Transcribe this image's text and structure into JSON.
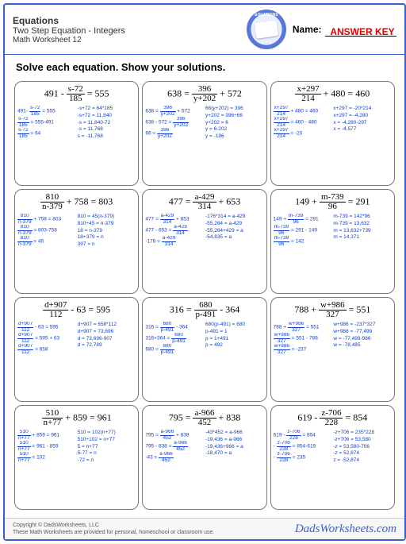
{
  "header": {
    "title": "Equations",
    "subtitle": "Two Step Equation - Integers",
    "ws": "Math Worksheet 12",
    "nameLabel": "Name:",
    "answerKey": "ANSWER KEY"
  },
  "instruction": "Solve each equation.  Show your solutions.",
  "cells": [
    {
      "eq": {
        "pre": "491 - ",
        "num": "s-72",
        "den": "185",
        "post": " = 555"
      },
      "c1": [
        "491- [s-72/185] = 555",
        "[s-72/185] = 555-491",
        "[s-72/185] = 64"
      ],
      "c2": [
        "-s+72 = 64*185",
        "-s+72 = 11,840",
        "-s = 11,840-72",
        "-s = 11,768",
        "s = -11,768"
      ]
    },
    {
      "eq": {
        "pre": "638 = ",
        "num": "396",
        "den": "y+202",
        "post": " + 572"
      },
      "c1": [
        "638 = [396/y+202] + 572",
        "638 - 572 = [396/y+202]",
        "66 = [396/y+202]"
      ],
      "c2": [
        "66(y+202) = 396",
        "y+202 = 396÷66",
        "y+202 = 6",
        "y = 6-202",
        "y = -196"
      ]
    },
    {
      "eq": {
        "pre": "",
        "num": "x+297",
        "den": "214",
        "post": " + 480 = 460"
      },
      "c1": [
        "[x+297/214] + 480 = 460",
        "[x+297/214] = 460 - 480",
        "[x+297/214] = -20"
      ],
      "c2": [
        "x+297 = -20*214",
        "x+297 = -4,280",
        "x = -4,280-297",
        "x = -4,577"
      ]
    },
    {
      "eq": {
        "pre": "",
        "num": "810",
        "den": "n-379",
        "post": " + 758 = 803"
      },
      "c1": [
        "[810/n-379] + 758 = 803",
        "[810/n-379] = 803-758",
        "[810/n-379] = 45"
      ],
      "c2": [
        "810 = 45(n-379)",
        "810÷45 = n-379",
        "18 = n-379",
        "18+379 = n",
        "397 = n"
      ]
    },
    {
      "eq": {
        "pre": "477 = ",
        "num": "a-429",
        "den": "314",
        "post": " + 653"
      },
      "c1": [
        "477 = [a-429/314] + 653",
        "477 - 653 = [a-429/314]",
        "-176 = [a-429/314]"
      ],
      "c2": [
        "-176*314 = a-429",
        "-55,264 = a-429",
        "-55,264+429 = a",
        "-54,835 = a"
      ]
    },
    {
      "eq": {
        "pre": "149 + ",
        "num": "m-739",
        "den": "96",
        "post": " = 291"
      },
      "c1": [
        "149 + [m-739/96] = 291",
        "[m-739/96] = 291 - 149",
        "[m-739/96] = 142"
      ],
      "c2": [
        "m-739 = 142*96",
        "m-739 = 13,632",
        "m = 13,632+739",
        "m = 14,371"
      ]
    },
    {
      "eq": {
        "pre": "",
        "num": "d+907",
        "den": "112",
        "post": " - 63 = 595"
      },
      "c1": [
        "[d+907/112] - 63 = 595",
        "[d+907/112] = 595 + 63",
        "[d+907/112] = 658"
      ],
      "c2": [
        "d+907 = 658*112",
        "d+907 = 73,696",
        "d = 73,696-907",
        "d = 72,789"
      ]
    },
    {
      "eq": {
        "pre": "316 = ",
        "num": "680",
        "den": "p-491",
        "post": " - 364"
      },
      "c1": [
        "316 = [680/p-491] - 364",
        "316+364 = [680/p-491]",
        "680 = [680/p-491]"
      ],
      "c2": [
        "680(p-491) = 680",
        "p-491 = 1",
        "p = 1+491",
        "p = 492"
      ]
    },
    {
      "eq": {
        "pre": "788 + ",
        "num": "w+986",
        "den": "327",
        "post": " = 551"
      },
      "c1": [
        "788 + [w+986/327] = 551",
        "[w+986/327] = 551 - 788",
        "[w+986/327] = -237"
      ],
      "c2": [
        "w+986 = -237*327",
        "w+986 = -77,499",
        "w = -77,499-986",
        "w = -78,485"
      ]
    },
    {
      "eq": {
        "pre": "",
        "num": "510",
        "den": "n+77",
        "post": " + 859 = 961"
      },
      "c1": [
        "[510/n+77] + 859 = 961",
        "[510/n+77] = 961 - 859",
        "[510/n+77] = 102"
      ],
      "c2": [
        "510 = 102(n+77)",
        "510÷102 = n+77",
        "5 = n+77",
        "5-77 = n",
        "-72 = n"
      ]
    },
    {
      "eq": {
        "pre": "795 = ",
        "num": "a-966",
        "den": "452",
        "post": " + 838"
      },
      "c1": [
        "795 = [a-966/452] + 838",
        "795 - 838 = [a-966/452]",
        "-43 = [a-966/452]"
      ],
      "c2": [
        "-43*452 = a-966",
        "-19,436 = a-966",
        "-19,436+966 = a",
        "-18,470 = a"
      ]
    },
    {
      "eq": {
        "pre": "619 - ",
        "num": "z-706",
        "den": "228",
        "post": " = 854"
      },
      "c1": [
        "619 - [z-706/228] = 854",
        "- [z-706/228] = 854-619",
        "- [z-706/228] = 235"
      ],
      "c2": [
        "-z+706 = 235*228",
        "-z+706 = 53,580",
        "-z = 53,580-706",
        "-z = 52,874",
        "z = -52,874"
      ]
    }
  ],
  "footer": {
    "copyright": "Copyright © DadsWorksheets, LLC",
    "note": "These Math Worksheets are provided for personal, homeschool or classroom use.",
    "brand": "DadsWorksheets.com"
  }
}
